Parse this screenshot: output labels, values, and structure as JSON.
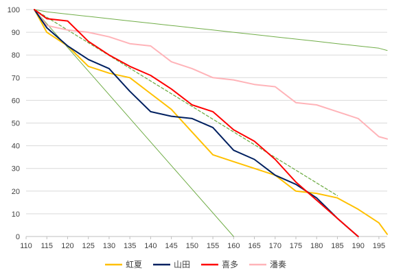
{
  "chart_data": {
    "type": "line",
    "title": "",
    "xlabel": "",
    "ylabel": "",
    "xlim": [
      110,
      197
    ],
    "ylim": [
      0,
      100
    ],
    "x_ticks": [
      110,
      115,
      120,
      125,
      130,
      135,
      140,
      145,
      150,
      155,
      160,
      165,
      170,
      175,
      180,
      185,
      190,
      195
    ],
    "y_ticks": [
      0,
      10,
      20,
      30,
      40,
      50,
      60,
      70,
      80,
      90,
      100
    ],
    "grid": "horizontal",
    "legend_position": "bottom",
    "series": [
      {
        "name": "虹夏",
        "color": "#FFC000",
        "width": 2,
        "dash": "",
        "points": [
          [
            112,
            100
          ],
          [
            115,
            90
          ],
          [
            120,
            84
          ],
          [
            125,
            75
          ],
          [
            130,
            72
          ],
          [
            135,
            70
          ],
          [
            140,
            63
          ],
          [
            145,
            56
          ],
          [
            150,
            46
          ],
          [
            155,
            36
          ],
          [
            160,
            33
          ],
          [
            165,
            30
          ],
          [
            170,
            27
          ],
          [
            175,
            20
          ],
          [
            180,
            19
          ],
          [
            185,
            17
          ],
          [
            190,
            12
          ],
          [
            195,
            6
          ],
          [
            197,
            1
          ]
        ]
      },
      {
        "name": "山田",
        "color": "#002060",
        "width": 2,
        "dash": "",
        "points": [
          [
            112,
            100
          ],
          [
            115,
            92
          ],
          [
            120,
            84
          ],
          [
            125,
            78
          ],
          [
            130,
            74
          ],
          [
            135,
            64
          ],
          [
            140,
            55
          ],
          [
            145,
            53
          ],
          [
            150,
            52
          ],
          [
            155,
            48
          ],
          [
            160,
            38
          ],
          [
            165,
            34
          ],
          [
            170,
            27
          ],
          [
            175,
            23
          ],
          [
            180,
            17
          ],
          [
            185,
            8
          ],
          [
            190,
            0
          ]
        ]
      },
      {
        "name": "喜多",
        "color": "#FF0000",
        "width": 2,
        "dash": "",
        "points": [
          [
            112,
            100
          ],
          [
            115,
            96
          ],
          [
            120,
            95
          ],
          [
            125,
            86
          ],
          [
            130,
            80
          ],
          [
            135,
            75
          ],
          [
            140,
            71
          ],
          [
            145,
            65
          ],
          [
            150,
            58
          ],
          [
            155,
            55
          ],
          [
            160,
            47
          ],
          [
            165,
            42
          ],
          [
            170,
            34
          ],
          [
            175,
            24
          ],
          [
            180,
            16
          ],
          [
            185,
            8
          ],
          [
            190,
            0
          ]
        ]
      },
      {
        "name": "潘奏",
        "color": "#FFB3B8",
        "width": 2,
        "dash": "",
        "points": [
          [
            112,
            100
          ],
          [
            115,
            93
          ],
          [
            120,
            91
          ],
          [
            125,
            90
          ],
          [
            130,
            88
          ],
          [
            135,
            85
          ],
          [
            140,
            84
          ],
          [
            145,
            77
          ],
          [
            150,
            74
          ],
          [
            155,
            70
          ],
          [
            160,
            69
          ],
          [
            165,
            67
          ],
          [
            170,
            66
          ],
          [
            175,
            59
          ],
          [
            180,
            58
          ],
          [
            185,
            55
          ],
          [
            190,
            52
          ],
          [
            195,
            44
          ],
          [
            197,
            43
          ]
        ]
      },
      {
        "name": "",
        "color": "#70AD47",
        "width": 1,
        "dash": "",
        "points": [
          [
            112,
            100
          ],
          [
            115,
            99
          ],
          [
            120,
            98
          ],
          [
            125,
            97
          ],
          [
            130,
            96
          ],
          [
            135,
            95
          ],
          [
            140,
            94
          ],
          [
            145,
            93
          ],
          [
            150,
            92
          ],
          [
            155,
            91
          ],
          [
            160,
            90
          ],
          [
            165,
            89
          ],
          [
            170,
            88
          ],
          [
            175,
            87
          ],
          [
            180,
            86
          ],
          [
            185,
            85
          ],
          [
            190,
            84
          ],
          [
            195,
            83
          ],
          [
            197,
            82
          ]
        ]
      },
      {
        "name": "",
        "color": "#70AD47",
        "width": 1,
        "dash": "",
        "points": [
          [
            112,
            100
          ],
          [
            160,
            0
          ]
        ]
      },
      {
        "name": "",
        "color": "#70AD47",
        "width": 1.3,
        "dash": "4,3",
        "points": [
          [
            112,
            100
          ],
          [
            185,
            18
          ]
        ]
      }
    ]
  }
}
